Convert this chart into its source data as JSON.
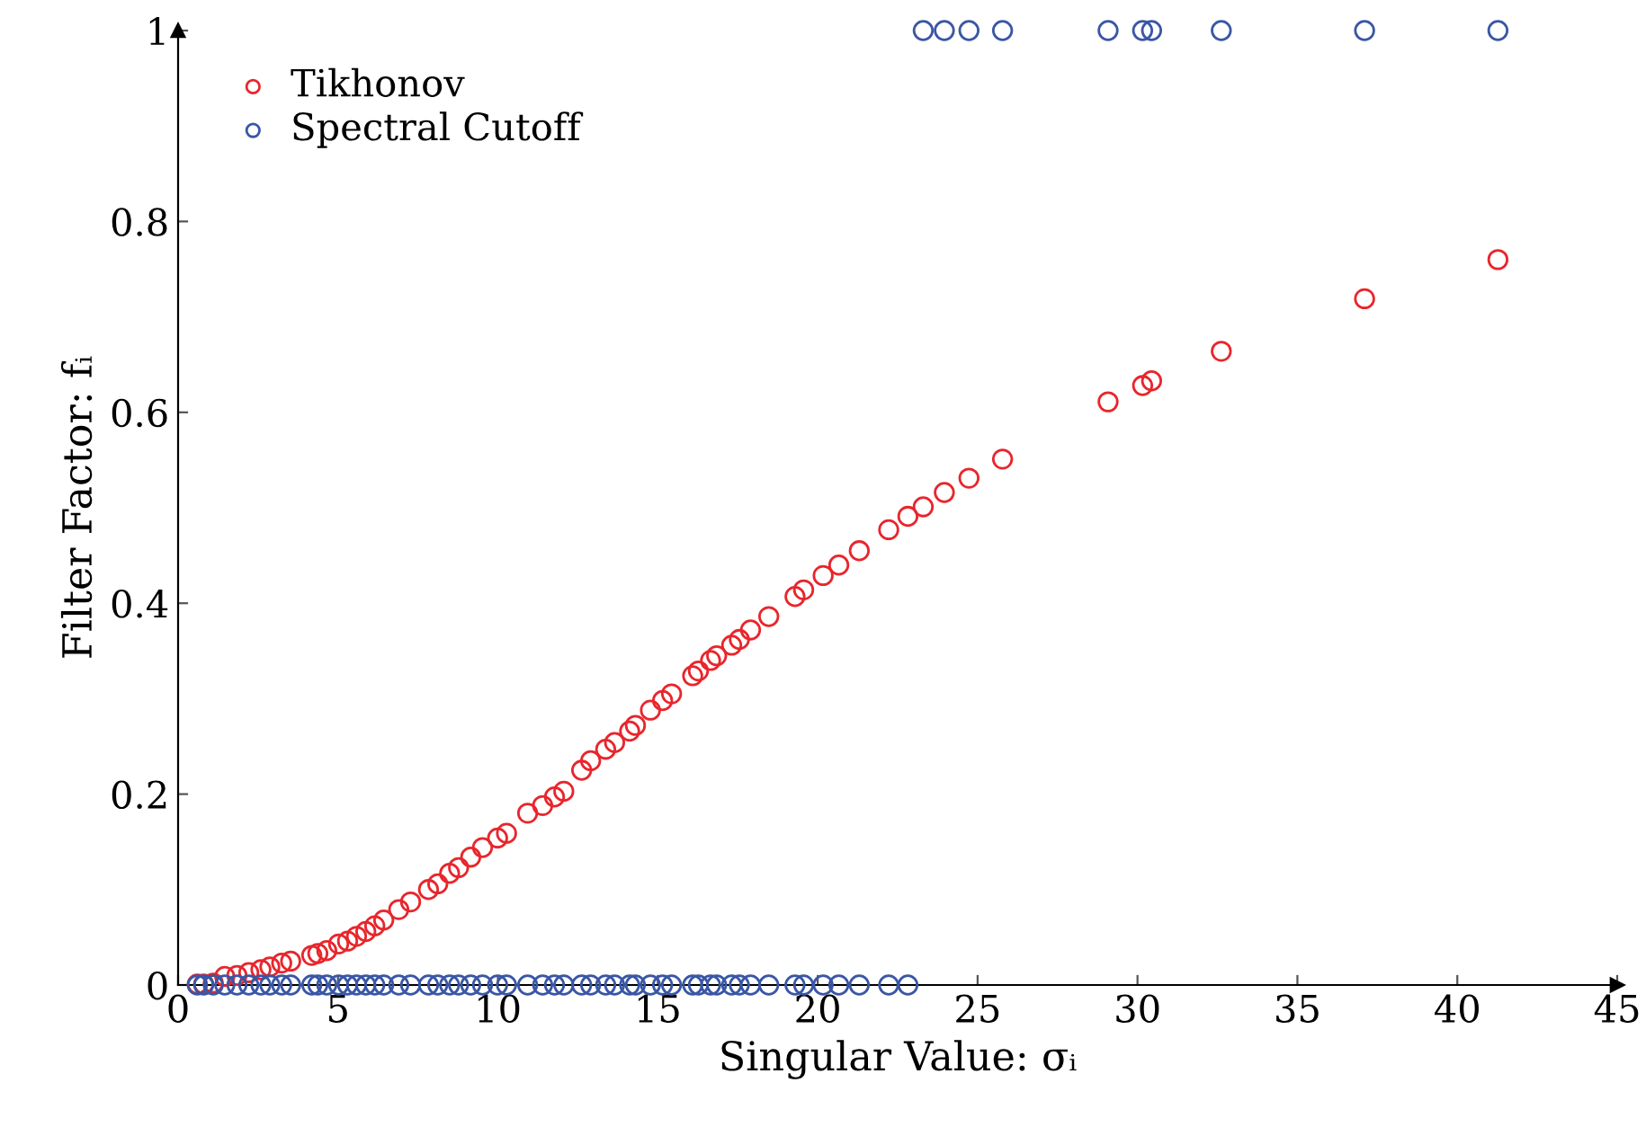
{
  "chart_data": {
    "type": "scatter",
    "xlabel": "Singular Value: σᵢ",
    "ylabel": "Filter Factor: fᵢ",
    "x": [
      0.6,
      0.8,
      1.1,
      1.46,
      1.84,
      2.21,
      2.59,
      2.87,
      3.24,
      3.52,
      4.18,
      4.37,
      4.65,
      5.02,
      5.3,
      5.58,
      5.87,
      6.15,
      6.43,
      6.9,
      7.27,
      7.83,
      8.12,
      8.49,
      8.77,
      9.15,
      9.52,
      9.99,
      10.27,
      10.93,
      11.4,
      11.77,
      12.06,
      12.62,
      12.9,
      13.37,
      13.65,
      14.12,
      14.3,
      14.77,
      15.15,
      15.43,
      16.09,
      16.27,
      16.65,
      16.84,
      17.31,
      17.55,
      17.9,
      18.47,
      19.29,
      19.56,
      20.17,
      20.66,
      21.3,
      22.22,
      22.82,
      23.3,
      23.96,
      24.73,
      25.78,
      29.08,
      30.16,
      30.44,
      32.62,
      37.1,
      41.27
    ],
    "series": [
      {
        "name": "Tikhonov",
        "color": "#e8262c",
        "values": [
          0.001,
          0.001,
          0.002,
          0.009,
          0.01,
          0.013,
          0.016,
          0.019,
          0.023,
          0.025,
          0.031,
          0.033,
          0.036,
          0.043,
          0.046,
          0.051,
          0.056,
          0.062,
          0.068,
          0.079,
          0.087,
          0.1,
          0.106,
          0.117,
          0.123,
          0.134,
          0.144,
          0.154,
          0.159,
          0.18,
          0.188,
          0.197,
          0.203,
          0.225,
          0.235,
          0.247,
          0.254,
          0.266,
          0.272,
          0.288,
          0.298,
          0.305,
          0.324,
          0.329,
          0.34,
          0.345,
          0.356,
          0.362,
          0.372,
          0.386,
          0.407,
          0.414,
          0.429,
          0.44,
          0.455,
          0.477,
          0.491,
          0.501,
          0.516,
          0.531,
          0.551,
          0.611,
          0.628,
          0.633,
          0.664,
          0.719,
          0.76
        ]
      },
      {
        "name": "Spectral Cutoff",
        "color": "#3a56a6",
        "values": [
          0,
          0,
          0,
          0,
          0,
          0,
          0,
          0,
          0,
          0,
          0,
          0,
          0,
          0,
          0,
          0,
          0,
          0,
          0,
          0,
          0,
          0,
          0,
          0,
          0,
          0,
          0,
          0,
          0,
          0,
          0,
          0,
          0,
          0,
          0,
          0,
          0,
          0,
          0,
          0,
          0,
          0,
          0,
          0,
          0,
          0,
          0,
          0,
          0,
          0,
          0,
          0,
          0,
          0,
          0,
          0,
          0,
          1,
          1,
          1,
          1,
          1,
          1,
          1,
          1,
          1,
          1
        ]
      }
    ],
    "xlim": [
      0,
      45
    ],
    "xticks": [
      0,
      5,
      10,
      15,
      20,
      25,
      30,
      35,
      40,
      45
    ],
    "ylim": [
      0,
      1
    ],
    "yticks": [
      0,
      0.2,
      0.4,
      0.6,
      0.8,
      1
    ],
    "marker": "circle",
    "legend": "top left",
    "grid": false
  }
}
